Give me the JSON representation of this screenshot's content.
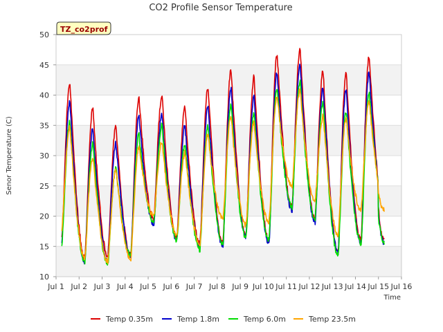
{
  "chart_data": {
    "type": "line",
    "title": "CO2 Profile Sensor Temperature",
    "xlabel": "Time",
    "ylabel": "Senor Temperature (C)",
    "badge": "TZ_co2prof",
    "xlim": [
      1,
      16
    ],
    "ylim": [
      10,
      50
    ],
    "xticks": [
      {
        "v": 1,
        "label": "Jul 1"
      },
      {
        "v": 2,
        "label": "Jul 2"
      },
      {
        "v": 3,
        "label": "Jul 3"
      },
      {
        "v": 4,
        "label": "Jul 4"
      },
      {
        "v": 5,
        "label": "Jul 5"
      },
      {
        "v": 6,
        "label": "Jul 6"
      },
      {
        "v": 7,
        "label": "Jul 7"
      },
      {
        "v": 8,
        "label": "Jul 8"
      },
      {
        "v": 9,
        "label": "Jul 9"
      },
      {
        "v": 10,
        "label": "Jul 10"
      },
      {
        "v": 11,
        "label": "Jul 11"
      },
      {
        "v": 12,
        "label": "Jul 12"
      },
      {
        "v": 13,
        "label": "Jul 13"
      },
      {
        "v": 14,
        "label": "Jul 14"
      },
      {
        "v": 15,
        "label": "Jul 15"
      },
      {
        "v": 16,
        "label": "Jul 16"
      }
    ],
    "yticks": [
      10,
      15,
      20,
      25,
      30,
      35,
      40,
      45,
      50
    ],
    "grid": true,
    "legend_position": "bottom",
    "series": [
      {
        "name": "Temp 0.35m",
        "color": "#dd0000",
        "mins": [
          16.5,
          13.0,
          13.5,
          13.5,
          19.5,
          16.5,
          15.5,
          15.5,
          17.0,
          16.0,
          21.5,
          19.5,
          14.0,
          16.0
        ],
        "maxs": [
          42.0,
          37.8,
          34.8,
          39.5,
          40.0,
          38.0,
          41.3,
          44.2,
          43.0,
          46.8,
          47.8,
          44.0,
          43.8,
          46.5
        ],
        "end": 21.0
      },
      {
        "name": "Temp 1.8m",
        "color": "#0000cc",
        "mins": [
          15.5,
          12.5,
          12.5,
          13.5,
          18.5,
          16.0,
          15.0,
          15.0,
          16.5,
          15.5,
          21.0,
          19.0,
          14.0,
          15.5
        ],
        "maxs": [
          38.8,
          34.5,
          32.2,
          36.5,
          36.8,
          35.0,
          38.2,
          41.2,
          40.0,
          43.8,
          45.3,
          41.3,
          41.0,
          43.8
        ],
        "end": 21.0
      },
      {
        "name": "Temp 6.0m",
        "color": "#00dd00",
        "mins": [
          15.0,
          12.5,
          12.0,
          13.5,
          19.0,
          16.0,
          14.5,
          15.5,
          16.5,
          16.0,
          21.5,
          19.5,
          13.5,
          15.5
        ],
        "maxs": [
          35.5,
          32.0,
          28.0,
          33.5,
          35.0,
          32.0,
          35.0,
          38.5,
          37.0,
          41.2,
          42.3,
          38.8,
          37.2,
          40.3
        ],
        "end": 22.0
      },
      {
        "name": "Temp 23.5m",
        "color": "#ffa500",
        "mins": [
          18.0,
          13.0,
          12.5,
          13.0,
          20.0,
          17.0,
          15.5,
          19.5,
          18.5,
          19.0,
          25.0,
          22.5,
          17.0,
          21.0
        ],
        "maxs": [
          34.8,
          29.8,
          27.8,
          31.5,
          32.3,
          30.5,
          33.5,
          36.5,
          35.5,
          39.8,
          40.8,
          36.5,
          36.2,
          39.0
        ],
        "end": 22.5
      }
    ]
  }
}
